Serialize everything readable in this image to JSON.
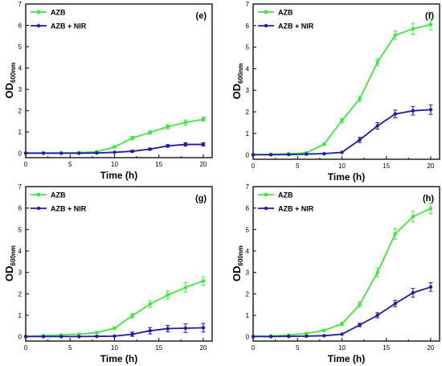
{
  "figure": {
    "colors": {
      "azb": "#3ee83e",
      "azb_nir": "#1c1ca8"
    }
  },
  "chart_data": [
    {
      "type": "line",
      "panel_label": "(e)",
      "xlabel": "Time (h)",
      "ylabel": "OD",
      "ylabel_sub": "600nm",
      "xlim": [
        0,
        21
      ],
      "ylim": [
        -0.2,
        7
      ],
      "xticks": [
        0,
        5,
        10,
        15,
        20
      ],
      "yticks": [
        0,
        1,
        2,
        3,
        4,
        5,
        6,
        7
      ],
      "x": [
        0,
        2,
        4,
        6,
        8,
        10,
        12,
        14,
        16,
        18,
        20
      ],
      "series": [
        {
          "name": "AZB",
          "values": [
            0.02,
            0.02,
            0.02,
            0.03,
            0.08,
            0.3,
            0.72,
            0.98,
            1.25,
            1.45,
            1.6
          ],
          "errors": [
            0.02,
            0.02,
            0.02,
            0.02,
            0.03,
            0.05,
            0.08,
            0.08,
            0.1,
            0.12,
            0.1
          ]
        },
        {
          "name": "AZB + NIR",
          "values": [
            0.01,
            0.01,
            0.01,
            0.01,
            0.02,
            0.05,
            0.1,
            0.2,
            0.35,
            0.42,
            0.42
          ],
          "errors": [
            0.01,
            0.01,
            0.01,
            0.01,
            0.02,
            0.02,
            0.04,
            0.05,
            0.06,
            0.08,
            0.08
          ]
        }
      ]
    },
    {
      "type": "line",
      "panel_label": "(f)",
      "xlabel": "Time (h)",
      "ylabel": "OD",
      "ylabel_sub": "600nm",
      "xlim": [
        0,
        21
      ],
      "ylim": [
        -0.2,
        7
      ],
      "xticks": [
        0,
        5,
        10,
        15,
        20
      ],
      "yticks": [
        0,
        1,
        2,
        3,
        4,
        5,
        6,
        7
      ],
      "x": [
        0,
        2,
        4,
        6,
        8,
        10,
        12,
        14,
        16,
        18,
        20
      ],
      "series": [
        {
          "name": "AZB",
          "values": [
            0.02,
            0.03,
            0.05,
            0.1,
            0.5,
            1.6,
            2.6,
            4.3,
            5.55,
            5.85,
            6.05
          ],
          "errors": [
            0.02,
            0.02,
            0.02,
            0.03,
            0.05,
            0.1,
            0.12,
            0.15,
            0.2,
            0.25,
            0.25
          ]
        },
        {
          "name": "AZB + NIR",
          "values": [
            0.01,
            0.01,
            0.02,
            0.04,
            0.06,
            0.12,
            0.7,
            1.35,
            1.9,
            2.05,
            2.1
          ],
          "errors": [
            0.01,
            0.01,
            0.01,
            0.02,
            0.02,
            0.03,
            0.12,
            0.15,
            0.18,
            0.2,
            0.22
          ]
        }
      ]
    },
    {
      "type": "line",
      "panel_label": "(g)",
      "xlabel": "Time (h)",
      "ylabel": "OD",
      "ylabel_sub": "600nm",
      "xlim": [
        0,
        21
      ],
      "ylim": [
        -0.2,
        7
      ],
      "xticks": [
        0,
        5,
        10,
        15,
        20
      ],
      "yticks": [
        0,
        1,
        2,
        3,
        4,
        5,
        6,
        7
      ],
      "x": [
        0,
        2,
        4,
        6,
        8,
        10,
        12,
        14,
        16,
        18,
        20
      ],
      "series": [
        {
          "name": "AZB",
          "values": [
            0.02,
            0.05,
            0.08,
            0.12,
            0.2,
            0.4,
            0.98,
            1.52,
            1.95,
            2.3,
            2.6
          ],
          "errors": [
            0.02,
            0.02,
            0.02,
            0.03,
            0.04,
            0.06,
            0.1,
            0.15,
            0.2,
            0.22,
            0.2
          ]
        },
        {
          "name": "AZB + NIR",
          "values": [
            0.01,
            0.01,
            0.01,
            0.01,
            0.02,
            0.03,
            0.12,
            0.28,
            0.38,
            0.4,
            0.42
          ],
          "errors": [
            0.01,
            0.01,
            0.01,
            0.01,
            0.02,
            0.03,
            0.1,
            0.15,
            0.15,
            0.2,
            0.2
          ]
        }
      ]
    },
    {
      "type": "line",
      "panel_label": "(h)",
      "xlabel": "Time (h)",
      "ylabel": "OD",
      "ylabel_sub": "600nm",
      "xlim": [
        0,
        21
      ],
      "ylim": [
        -0.2,
        7
      ],
      "xticks": [
        0,
        5,
        10,
        15,
        20
      ],
      "yticks": [
        0,
        1,
        2,
        3,
        4,
        5,
        6,
        7
      ],
      "x": [
        0,
        2,
        4,
        6,
        8,
        10,
        12,
        14,
        16,
        18,
        20
      ],
      "series": [
        {
          "name": "AZB",
          "values": [
            0.02,
            0.04,
            0.08,
            0.15,
            0.3,
            0.6,
            1.5,
            3.0,
            4.8,
            5.6,
            5.98
          ],
          "errors": [
            0.02,
            0.02,
            0.03,
            0.04,
            0.05,
            0.08,
            0.12,
            0.2,
            0.25,
            0.25,
            0.25
          ]
        },
        {
          "name": "AZB + NIR",
          "values": [
            0.01,
            0.01,
            0.02,
            0.03,
            0.05,
            0.12,
            0.55,
            1.0,
            1.55,
            2.05,
            2.32
          ],
          "errors": [
            0.01,
            0.01,
            0.01,
            0.02,
            0.02,
            0.03,
            0.08,
            0.12,
            0.15,
            0.2,
            0.2
          ]
        }
      ]
    }
  ]
}
